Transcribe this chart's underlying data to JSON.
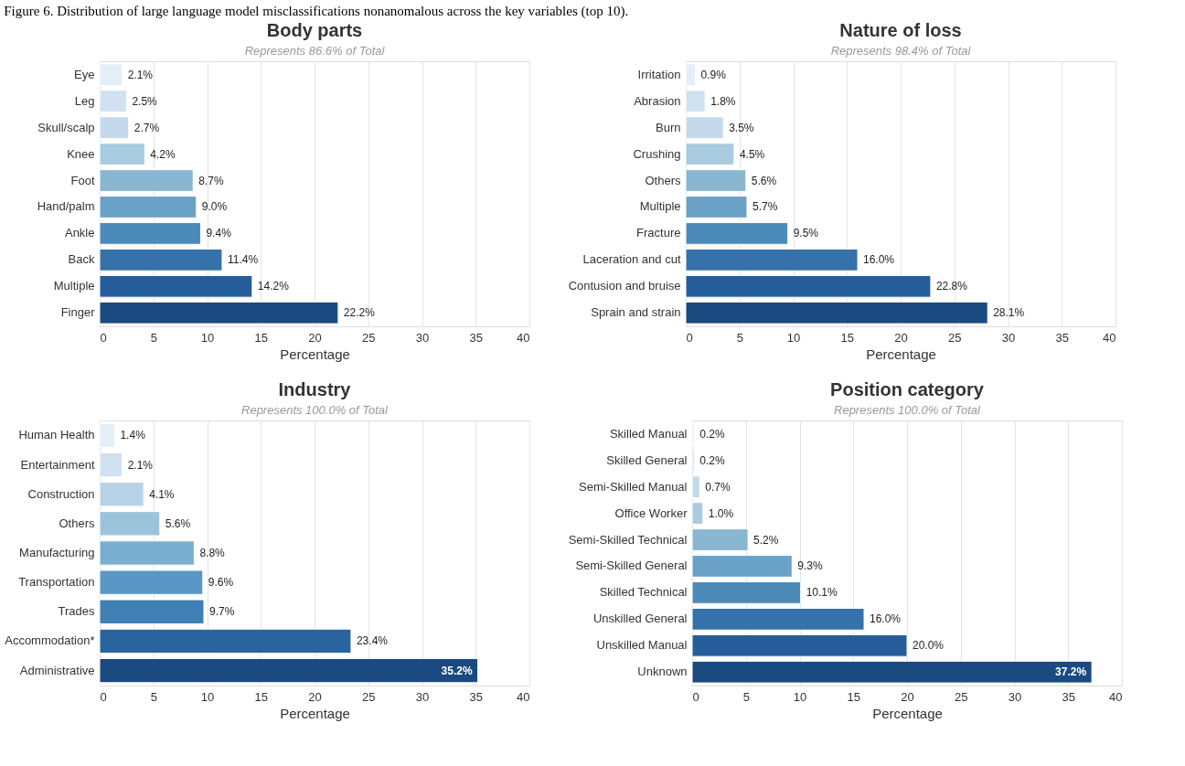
{
  "chart_data": [
    {
      "type": "bar",
      "orientation": "horizontal",
      "title": "Body parts",
      "subtitle": "Represents 86.6% of Total",
      "xlabel": "Percentage",
      "annotations": [
        "Figure 6. Distribution of large language model misclassifications nonanomalous across the key variables (top 10)."
      ],
      "categories": [
        "Eye",
        "Leg",
        "Skull/scalp",
        "Knee",
        "Foot",
        "Hand/palm",
        "Ankle",
        "Back",
        "Multiple",
        "Finger"
      ],
      "values": [
        2.1,
        2.5,
        2.7,
        4.2,
        8.7,
        9.0,
        9.4,
        11.4,
        14.2,
        22.2
      ],
      "value_labels": [
        "2.1%",
        "2.5%",
        "2.7%",
        "4.2%",
        "8.7%",
        "9.0%",
        "9.4%",
        "11.4%",
        "14.2%",
        "22.2%"
      ],
      "colors": [
        "#e3eef9",
        "#d0e1f2",
        "#c4d9ec",
        "#a9cbe0",
        "#89b6d1",
        "#6aa1c7",
        "#4b8ab9",
        "#3571aa",
        "#255d9a",
        "#1a4a80"
      ],
      "xlim": [
        0,
        40
      ],
      "xticks": [
        0,
        5,
        10,
        15,
        20,
        25,
        30,
        35,
        40
      ],
      "grid": "x"
    },
    {
      "type": "bar",
      "orientation": "horizontal",
      "title": "Nature of loss",
      "subtitle": "Represents 98.4% of Total",
      "xlabel": "Percentage",
      "categories": [
        "Irritation",
        "Abrasion",
        "Burn",
        "Crushing",
        "Others",
        "Multiple",
        "Fracture",
        "Laceration and cut",
        "Contusion and bruise",
        "Sprain and strain"
      ],
      "values": [
        0.9,
        1.8,
        3.5,
        4.5,
        5.6,
        5.7,
        9.5,
        16.0,
        22.8,
        28.1
      ],
      "value_labels": [
        "0.9%",
        "1.8%",
        "3.5%",
        "4.5%",
        "5.6%",
        "5.7%",
        "9.5%",
        "16.0%",
        "22.8%",
        "28.1%"
      ],
      "colors": [
        "#e3eef9",
        "#d0e1f2",
        "#c4d9ec",
        "#a9cbe0",
        "#89b6d1",
        "#6aa1c7",
        "#4b8ab9",
        "#3571aa",
        "#255d9a",
        "#1a4a80"
      ],
      "xlim": [
        0,
        40
      ],
      "xticks": [
        0,
        5,
        10,
        15,
        20,
        25,
        30,
        35,
        40
      ],
      "grid": "x"
    },
    {
      "type": "bar",
      "orientation": "horizontal",
      "title": "Industry",
      "subtitle": "Represents 100.0% of Total",
      "xlabel": "Percentage",
      "categories": [
        "Human Health",
        "Entertainment",
        "Construction",
        "Others",
        "Manufacturing",
        "Transportation",
        "Trades",
        "Accommodation*",
        "Administrative"
      ],
      "values": [
        1.4,
        2.1,
        4.1,
        5.6,
        8.8,
        9.6,
        9.7,
        23.4,
        35.2
      ],
      "value_labels": [
        "1.4%",
        "2.1%",
        "4.1%",
        "5.6%",
        "8.8%",
        "9.6%",
        "9.7%",
        "23.4%",
        "35.2%"
      ],
      "colors": [
        "#e3eef9",
        "#d0e1f2",
        "#b9d3e6",
        "#9cc3dc",
        "#7aaed0",
        "#5a97c4",
        "#3f7fb4",
        "#2a649f",
        "#1a4a80"
      ],
      "xlim": [
        0,
        40
      ],
      "xticks": [
        0,
        5,
        10,
        15,
        20,
        25,
        30,
        35,
        40
      ],
      "grid": "x"
    },
    {
      "type": "bar",
      "orientation": "horizontal",
      "title": "Position category",
      "subtitle": "Represents 100.0% of Total",
      "xlabel": "Percentage",
      "categories": [
        "Skilled Manual",
        "Skilled General",
        "Semi-Skilled Manual",
        "Office Worker",
        "Semi-Skilled Technical",
        "Semi-Skilled General",
        "Skilled Technical",
        "Unskilled General",
        "Unskilled Manual",
        "Unknown"
      ],
      "values": [
        0.2,
        0.2,
        0.7,
        1.0,
        5.2,
        9.3,
        10.1,
        16.0,
        20.0,
        37.2
      ],
      "value_labels": [
        "0.2%",
        "0.2%",
        "0.7%",
        "1.0%",
        "5.2%",
        "9.3%",
        "10.1%",
        "16.0%",
        "20.0%",
        "37.2%"
      ],
      "colors": [
        "#e3eef9",
        "#d0e1f2",
        "#c4d9ec",
        "#a9cbe0",
        "#89b6d1",
        "#6aa1c7",
        "#4b8ab9",
        "#3571aa",
        "#255d9a",
        "#1a4a80"
      ],
      "xlim": [
        0,
        40
      ],
      "xticks": [
        0,
        5,
        10,
        15,
        20,
        25,
        30,
        35,
        40
      ],
      "grid": "x"
    }
  ]
}
